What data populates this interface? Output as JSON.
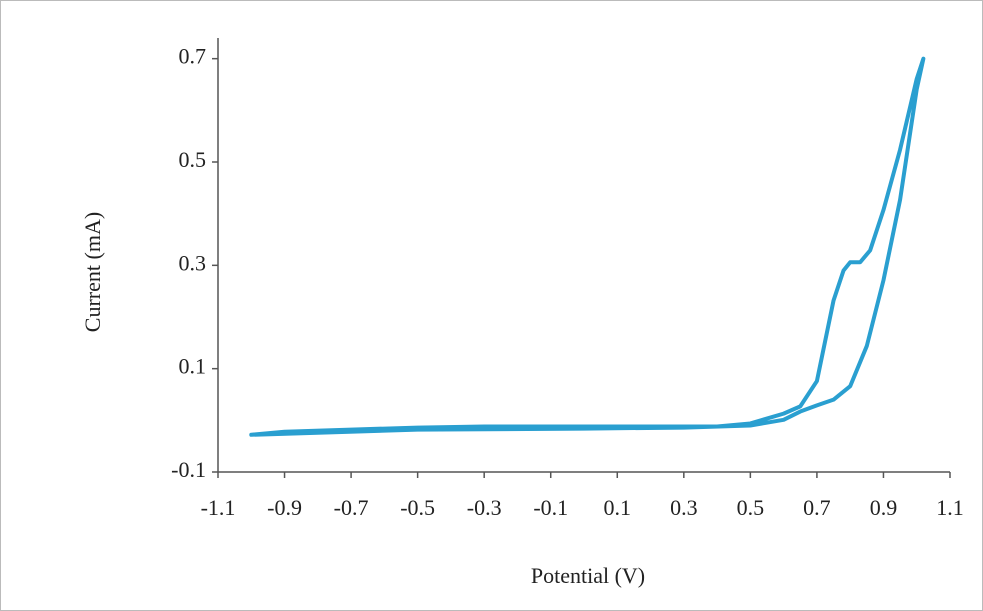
{
  "chart_data": {
    "type": "line",
    "x_label": "Potential (V)",
    "y_label": "Current (mA)",
    "x": [
      -1.0,
      -0.9,
      -0.7,
      -0.5,
      -0.3,
      0.1,
      0.4,
      0.5,
      0.6,
      0.65,
      0.7,
      0.75,
      0.78,
      0.8,
      0.83,
      0.86,
      0.9,
      0.95,
      1.0,
      1.02,
      1.0,
      0.95,
      0.9,
      0.85,
      0.8,
      0.75,
      0.7,
      0.65,
      0.6,
      0.5,
      0.3,
      0.0,
      -0.5,
      -1.0
    ],
    "series": [
      {
        "color": "#2a9fd0",
        "values": [
          -0.028,
          -0.022,
          -0.018,
          -0.014,
          -0.012,
          -0.012,
          -0.012,
          -0.006,
          0.013,
          0.027,
          0.076,
          0.232,
          0.29,
          0.306,
          0.306,
          0.329,
          0.407,
          0.524,
          0.661,
          0.7,
          0.641,
          0.427,
          0.271,
          0.144,
          0.066,
          0.04,
          0.029,
          0.017,
          0.001,
          -0.01,
          -0.014,
          -0.016,
          -0.018,
          -0.028
        ]
      }
    ],
    "xlim": [
      -1.1,
      1.1
    ],
    "xticks": [
      -1.1,
      -0.9,
      -0.7,
      -0.5,
      -0.3,
      -0.1,
      0.1,
      0.3,
      0.5,
      0.7,
      0.9,
      1.1
    ],
    "ylim": [
      -0.1,
      0.74
    ],
    "yticks": [
      -0.1,
      0.1,
      0.3,
      0.5,
      0.7
    ]
  }
}
